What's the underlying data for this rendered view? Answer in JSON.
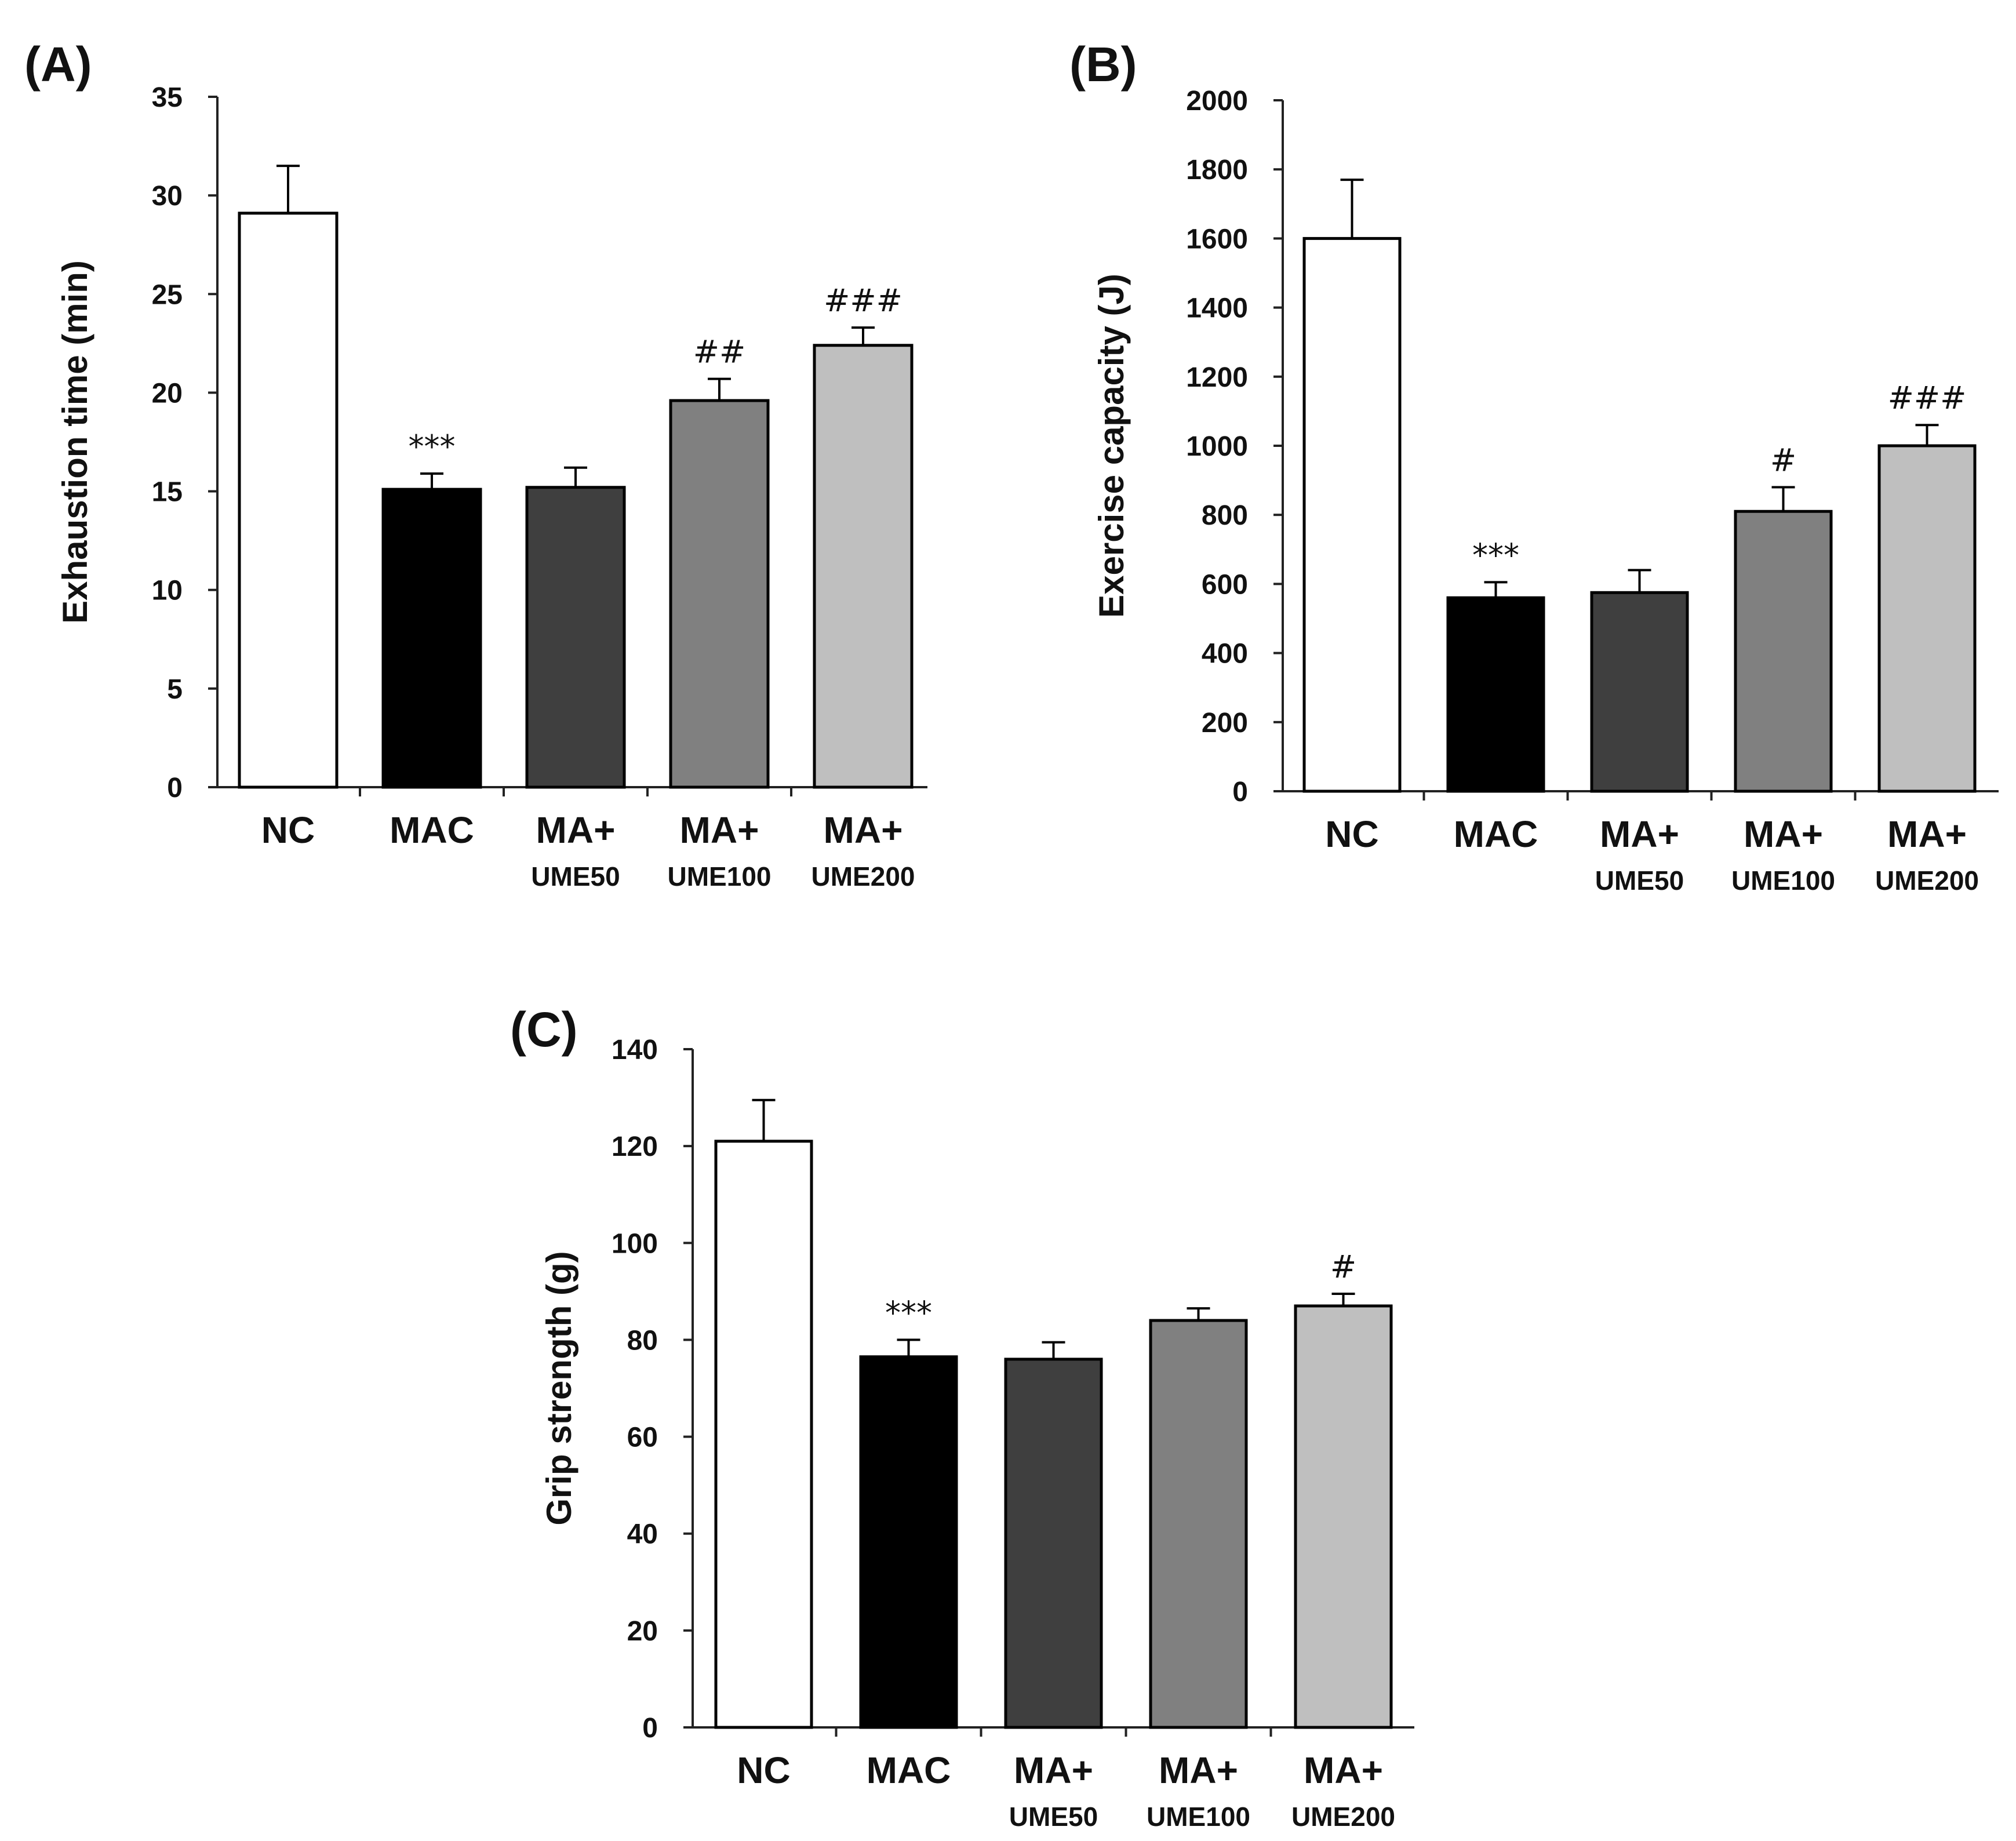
{
  "chart_data": [
    {
      "type": "bar",
      "panel": "(A)",
      "ylabel": "Exhaustion time (min)",
      "ylim": [
        0,
        35
      ],
      "yticks": [
        0,
        5,
        10,
        15,
        20,
        25,
        30,
        35
      ],
      "categories": [
        {
          "main": "NC",
          "sub": ""
        },
        {
          "main": "MAC",
          "sub": ""
        },
        {
          "main": "MA+",
          "sub": "UME50"
        },
        {
          "main": "MA+",
          "sub": "UME100"
        },
        {
          "main": "MA+",
          "sub": "UME200"
        }
      ],
      "values": [
        29.1,
        15.1,
        15.2,
        19.6,
        22.4
      ],
      "errors": [
        2.4,
        0.8,
        1.0,
        1.1,
        0.9
      ],
      "significance": [
        "",
        "***",
        "",
        "##",
        "###"
      ],
      "colors": [
        "#ffffff",
        "#000000",
        "#3f3f3f",
        "#808080",
        "#bfbfbf"
      ]
    },
    {
      "type": "bar",
      "panel": "(B)",
      "ylabel": "Exercise capacity (J)",
      "ylim": [
        0,
        2000
      ],
      "yticks": [
        0,
        200,
        400,
        600,
        800,
        1000,
        1200,
        1400,
        1600,
        1800,
        2000
      ],
      "categories": [
        {
          "main": "NC",
          "sub": ""
        },
        {
          "main": "MAC",
          "sub": ""
        },
        {
          "main": "MA+",
          "sub": "UME50"
        },
        {
          "main": "MA+",
          "sub": "UME100"
        },
        {
          "main": "MA+",
          "sub": "UME200"
        }
      ],
      "values": [
        1600,
        560,
        575,
        810,
        1000
      ],
      "errors": [
        170,
        45,
        65,
        70,
        60
      ],
      "significance": [
        "",
        "***",
        "",
        "#",
        "###"
      ],
      "colors": [
        "#ffffff",
        "#000000",
        "#3f3f3f",
        "#808080",
        "#bfbfbf"
      ]
    },
    {
      "type": "bar",
      "panel": "(C)",
      "ylabel": "Grip strength (g)",
      "ylim": [
        0,
        140
      ],
      "yticks": [
        0,
        20,
        40,
        60,
        80,
        100,
        120,
        140
      ],
      "categories": [
        {
          "main": "NC",
          "sub": ""
        },
        {
          "main": "MAC",
          "sub": ""
        },
        {
          "main": "MA+",
          "sub": "UME50"
        },
        {
          "main": "MA+",
          "sub": "UME100"
        },
        {
          "main": "MA+",
          "sub": "UME200"
        }
      ],
      "values": [
        121,
        76.5,
        76,
        84,
        87
      ],
      "errors": [
        8.5,
        3.5,
        3.5,
        2.5,
        2.5
      ],
      "significance": [
        "",
        "***",
        "",
        "",
        "#"
      ],
      "colors": [
        "#ffffff",
        "#000000",
        "#3f3f3f",
        "#808080",
        "#bfbfbf"
      ]
    }
  ]
}
